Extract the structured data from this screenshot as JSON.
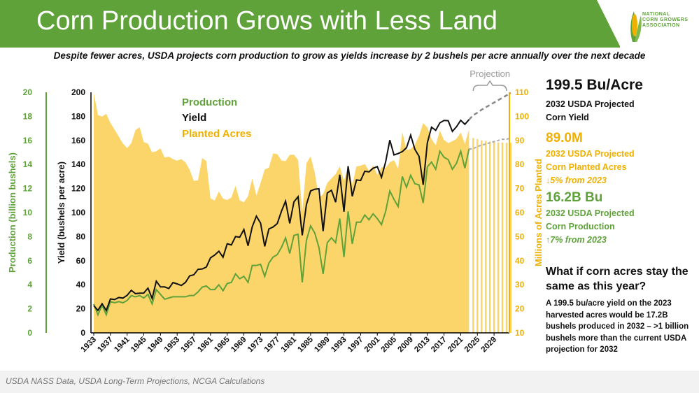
{
  "title": "Corn Production Grows with Less Land",
  "subtitle": "Despite fewer acres, USDA projects corn production to grow as yields increase by 2 bushels per acre annually over the next decade",
  "logo": {
    "icon": "corn-icon",
    "lines": [
      "NATIONAL",
      "CORN GROWERS",
      "ASSOCIATION"
    ]
  },
  "source": "USDA NASS Data, USDA Long-Term Projections, NCGA Calculations",
  "colors": {
    "green": "#5fa23a",
    "gold": "#f0b000",
    "acres_fill": "#fcd56a",
    "black": "#111111",
    "projection": "#999999"
  },
  "panel": {
    "yield_value": "199.5 Bu/Acre",
    "yield_line1": "2032 USDA Projected",
    "yield_line2": "Corn Yield",
    "acres_value": "89.0M",
    "acres_line1": "2032 USDA Projected",
    "acres_line2": "Corn Planted Acres",
    "acres_change": "↓5% from 2023",
    "prod_value": "16.2B Bu",
    "prod_line1": "2032 USDA Projected",
    "prod_line2": "Corn Production",
    "prod_change": "↑7% from 2023"
  },
  "whatif": {
    "heading": "What if corn acres stay the same as this year?",
    "body": "A 199.5 bu/acre yield on the 2023 harvested acres would be 17.2B bushels produced in 2032 – >1 billion bushels more than the current USDA projection for 2032"
  },
  "chart_data": {
    "type": "line",
    "legend": [
      "Production",
      "Yield",
      "Planted Acres"
    ],
    "projection_label": "Projection",
    "x_ticks": [
      "1933",
      "1937",
      "1941",
      "1945",
      "1949",
      "1953",
      "1957",
      "1961",
      "1965",
      "1969",
      "1973",
      "1977",
      "1981",
      "1985",
      "1989",
      "1993",
      "1997",
      "2001",
      "2005",
      "2009",
      "2013",
      "2017",
      "2021",
      "2025",
      "2029"
    ],
    "y_left_outer": {
      "label": "Production (billion bushels)",
      "range": [
        0,
        20
      ],
      "ticks": [
        "0",
        "2",
        "4",
        "6",
        "8",
        "10",
        "12",
        "14",
        "16",
        "18",
        "20"
      ]
    },
    "y_left_inner": {
      "label": "Yield (bushels per acre)",
      "range": [
        0,
        200
      ],
      "ticks": [
        "0",
        "20",
        "40",
        "60",
        "80",
        "100",
        "120",
        "140",
        "160",
        "180",
        "200"
      ]
    },
    "y_right": {
      "label": "Millions of Acres Planted",
      "range": [
        10,
        110
      ],
      "ticks": [
        "10",
        "20",
        "30",
        "40",
        "50",
        "60",
        "70",
        "80",
        "90",
        "100",
        "110"
      ]
    },
    "years": [
      1933,
      1934,
      1935,
      1936,
      1937,
      1938,
      1939,
      1940,
      1941,
      1942,
      1943,
      1944,
      1945,
      1946,
      1947,
      1948,
      1949,
      1950,
      1951,
      1952,
      1953,
      1954,
      1955,
      1956,
      1957,
      1958,
      1959,
      1960,
      1961,
      1962,
      1963,
      1964,
      1965,
      1966,
      1967,
      1968,
      1969,
      1970,
      1971,
      1972,
      1973,
      1974,
      1975,
      1976,
      1977,
      1978,
      1979,
      1980,
      1981,
      1982,
      1983,
      1984,
      1985,
      1986,
      1987,
      1988,
      1989,
      1990,
      1991,
      1992,
      1993,
      1994,
      1995,
      1996,
      1997,
      1998,
      1999,
      2000,
      2001,
      2002,
      2003,
      2004,
      2005,
      2006,
      2007,
      2008,
      2009,
      2010,
      2011,
      2012,
      2013,
      2014,
      2015,
      2016,
      2017,
      2018,
      2019,
      2020,
      2021,
      2022,
      2023,
      2024,
      2025,
      2026,
      2027,
      2028,
      2029,
      2030,
      2031,
      2032
    ],
    "series": [
      {
        "name": "Yield",
        "axis": "Yield (bushels per acre)",
        "color": "#111111",
        "actual": [
          22.6,
          18.7,
          24.2,
          18.6,
          28.2,
          27.7,
          29.4,
          28.9,
          31.2,
          35.4,
          32.6,
          33.0,
          33.1,
          37.2,
          28.6,
          43.0,
          38.2,
          38.2,
          36.9,
          41.8,
          40.7,
          39.4,
          42.0,
          47.4,
          48.3,
          52.8,
          53.1,
          54.7,
          62.4,
          64.7,
          67.9,
          62.9,
          74.1,
          73.1,
          80.1,
          79.5,
          85.9,
          72.4,
          88.1,
          97.0,
          91.3,
          71.9,
          86.4,
          88.0,
          90.8,
          101.0,
          109.5,
          91.0,
          108.9,
          113.2,
          81.1,
          106.7,
          118.0,
          119.4,
          119.8,
          84.6,
          116.3,
          118.5,
          108.6,
          131.5,
          100.7,
          138.6,
          113.5,
          127.1,
          126.7,
          134.4,
          133.8,
          136.9,
          138.2,
          129.3,
          142.2,
          160.3,
          147.9,
          149.1,
          150.7,
          153.9,
          164.4,
          152.6,
          146.8,
          123.1,
          158.1,
          171.0,
          168.4,
          174.6,
          176.6,
          176.4,
          167.5,
          171.4,
          176.7,
          173.4,
          177.3
        ],
        "projected": [
          181.0,
          183.0,
          185.5,
          187.5,
          189.5,
          191.5,
          193.5,
          195.5,
          197.5,
          199.5
        ]
      },
      {
        "name": "Production",
        "axis": "Production (billion bushels)",
        "color": "#5fa23a",
        "actual": [
          2.4,
          1.5,
          2.3,
          1.5,
          2.6,
          2.5,
          2.6,
          2.5,
          2.7,
          3.1,
          3.0,
          3.1,
          2.9,
          3.2,
          2.4,
          3.6,
          3.2,
          2.8,
          2.9,
          3.0,
          3.0,
          3.0,
          3.0,
          3.1,
          3.1,
          3.4,
          3.8,
          3.9,
          3.6,
          3.6,
          4.0,
          3.5,
          4.1,
          4.2,
          4.9,
          4.5,
          4.7,
          4.2,
          5.6,
          5.6,
          5.7,
          4.7,
          5.8,
          6.3,
          6.5,
          7.1,
          7.9,
          6.6,
          8.1,
          8.2,
          4.2,
          7.7,
          8.9,
          8.3,
          7.1,
          4.9,
          7.5,
          7.9,
          7.5,
          9.5,
          6.3,
          10.1,
          7.4,
          9.2,
          9.2,
          9.8,
          9.4,
          9.9,
          9.5,
          9.0,
          10.1,
          11.8,
          11.1,
          10.5,
          13.0,
          12.1,
          13.1,
          12.4,
          12.3,
          10.8,
          13.8,
          14.2,
          13.6,
          15.1,
          14.6,
          14.4,
          13.6,
          14.1,
          15.1,
          13.7,
          15.3
        ],
        "projected": [
          15.3,
          15.5,
          15.6,
          15.7,
          15.8,
          15.9,
          16.0,
          16.1,
          16.1,
          16.2
        ]
      },
      {
        "name": "Planted Acres",
        "axis": "Millions of Acres Planted",
        "color": "#fcd56a",
        "actual": [
          109.8,
          100.6,
          99.9,
          101.1,
          97.2,
          94.5,
          91.6,
          88.7,
          86.8,
          88.8,
          94.3,
          95.5,
          89.3,
          88.7,
          85.0,
          85.5,
          86.7,
          82.9,
          83.3,
          82.2,
          81.6,
          82.2,
          80.9,
          77.8,
          73.2,
          73.4,
          82.7,
          81.4,
          65.9,
          65.0,
          68.8,
          65.8,
          65.2,
          66.3,
          71.2,
          65.1,
          64.3,
          66.8,
          74.2,
          67.1,
          72.3,
          77.9,
          78.7,
          84.6,
          84.3,
          81.7,
          81.4,
          84.0,
          84.1,
          81.9,
          60.2,
          80.5,
          83.4,
          76.6,
          66.2,
          67.7,
          72.3,
          74.2,
          76.0,
          79.3,
          73.2,
          79.2,
          71.5,
          79.2,
          79.5,
          80.2,
          77.4,
          79.6,
          75.7,
          78.9,
          78.6,
          80.9,
          81.8,
          78.3,
          93.5,
          86.0,
          86.4,
          88.2,
          91.9,
          97.2,
          95.4,
          90.6,
          88.0,
          94.0,
          90.2,
          88.9,
          89.7,
          90.7,
          93.3,
          88.6,
          94.6
        ],
        "projected": [
          91.0,
          90.5,
          90.0,
          89.8,
          89.5,
          89.3,
          89.2,
          89.1,
          89.0,
          89.0
        ]
      }
    ]
  }
}
